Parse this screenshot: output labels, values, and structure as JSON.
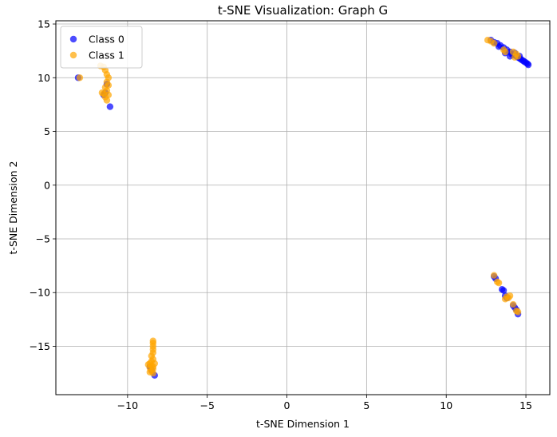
{
  "chart_data": {
    "type": "scatter",
    "title": "t-SNE Visualization: Graph G",
    "xlabel": "t-SNE Dimension 1",
    "ylabel": "t-SNE Dimension 2",
    "xlim": [
      -14.5,
      16.5
    ],
    "ylim": [
      -19.5,
      15.3
    ],
    "xticks": [
      -10,
      -5,
      0,
      5,
      10,
      15
    ],
    "yticks": [
      -15,
      -10,
      -5,
      0,
      5,
      10,
      15
    ],
    "grid": true,
    "legend_position": "top-left",
    "series": [
      {
        "name": "Class 0",
        "color": "#0000ff",
        "points": [
          [
            -13.1,
            10.0
          ],
          [
            -11.1,
            7.3
          ],
          [
            -11.4,
            8.6
          ],
          [
            -11.3,
            9.4
          ],
          [
            -11.5,
            8.4
          ],
          [
            12.8,
            13.5
          ],
          [
            13.0,
            13.3
          ],
          [
            13.2,
            13.2
          ],
          [
            13.4,
            13.0
          ],
          [
            13.6,
            12.8
          ],
          [
            13.8,
            12.6
          ],
          [
            14.0,
            12.4
          ],
          [
            14.1,
            12.2
          ],
          [
            14.2,
            12.1
          ],
          [
            14.4,
            12.0
          ],
          [
            14.5,
            11.9
          ],
          [
            14.6,
            11.8
          ],
          [
            14.7,
            11.7
          ],
          [
            14.8,
            11.6
          ],
          [
            14.9,
            11.5
          ],
          [
            15.0,
            11.4
          ],
          [
            15.1,
            11.3
          ],
          [
            15.15,
            11.2
          ],
          [
            14.3,
            12.3
          ],
          [
            14.0,
            12.0
          ],
          [
            13.7,
            12.3
          ],
          [
            13.3,
            12.9
          ],
          [
            14.6,
            12.0
          ],
          [
            13.0,
            -8.5
          ],
          [
            13.1,
            -8.7
          ],
          [
            13.5,
            -9.7
          ],
          [
            13.6,
            -9.8
          ],
          [
            13.8,
            -10.5
          ],
          [
            13.7,
            -10.3
          ],
          [
            14.2,
            -11.2
          ],
          [
            14.4,
            -11.6
          ],
          [
            14.5,
            -12.0
          ],
          [
            14.3,
            -11.4
          ],
          [
            -8.3,
            -17.7
          ],
          [
            -8.5,
            -17.2
          ],
          [
            -8.6,
            -16.9
          ]
        ]
      },
      {
        "name": "Class 1",
        "color": "#ffa500",
        "points": [
          [
            -13.0,
            10.0
          ],
          [
            -11.7,
            11.1
          ],
          [
            -11.5,
            11.0
          ],
          [
            -11.4,
            10.7
          ],
          [
            -11.3,
            10.3
          ],
          [
            -11.2,
            10.0
          ],
          [
            -11.3,
            9.6
          ],
          [
            -11.2,
            9.3
          ],
          [
            -11.4,
            9.1
          ],
          [
            -11.3,
            8.8
          ],
          [
            -11.5,
            8.5
          ],
          [
            -11.2,
            8.4
          ],
          [
            -11.4,
            8.2
          ],
          [
            -11.3,
            7.9
          ],
          [
            -11.6,
            8.6
          ],
          [
            12.6,
            13.5
          ],
          [
            12.8,
            13.4
          ],
          [
            13.0,
            13.2
          ],
          [
            13.6,
            12.6
          ],
          [
            13.7,
            12.4
          ],
          [
            14.2,
            12.4
          ],
          [
            14.4,
            12.2
          ],
          [
            14.5,
            12.0
          ],
          [
            14.3,
            11.9
          ],
          [
            13.0,
            -8.4
          ],
          [
            13.3,
            -9.1
          ],
          [
            13.2,
            -9.0
          ],
          [
            13.8,
            -10.4
          ],
          [
            13.9,
            -10.5
          ],
          [
            14.0,
            -10.3
          ],
          [
            13.7,
            -10.6
          ],
          [
            14.2,
            -11.1
          ],
          [
            14.4,
            -11.7
          ],
          [
            14.5,
            -11.8
          ],
          [
            -8.4,
            -14.5
          ],
          [
            -8.4,
            -14.7
          ],
          [
            -8.4,
            -15.0
          ],
          [
            -8.4,
            -15.3
          ],
          [
            -8.4,
            -15.6
          ],
          [
            -8.5,
            -15.9
          ],
          [
            -8.4,
            -16.2
          ],
          [
            -8.5,
            -16.4
          ],
          [
            -8.6,
            -16.6
          ],
          [
            -8.7,
            -16.7
          ],
          [
            -8.5,
            -16.8
          ],
          [
            -8.6,
            -17.0
          ],
          [
            -8.4,
            -17.1
          ],
          [
            -8.5,
            -17.3
          ],
          [
            -8.4,
            -17.5
          ],
          [
            -8.6,
            -17.4
          ],
          [
            -8.3,
            -16.6
          ],
          [
            -8.4,
            -16.9
          ]
        ]
      }
    ]
  }
}
